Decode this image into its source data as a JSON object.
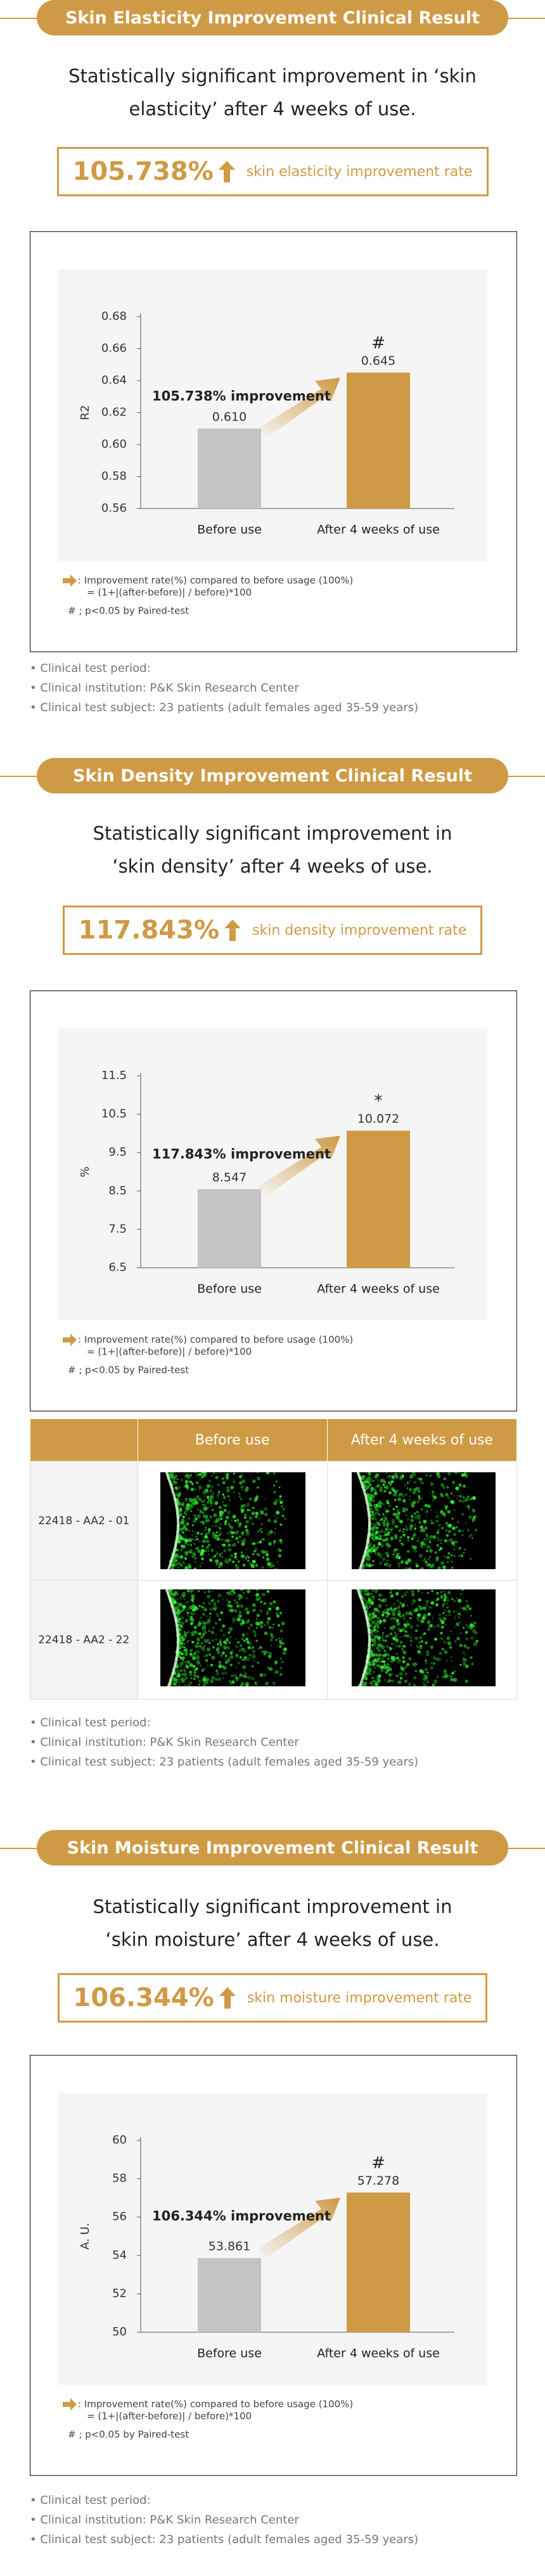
{
  "sections": [
    {
      "title": "Skin Elasticity Improvement Clinical Result",
      "subtitle": [
        "Statistically significant improvement in ‘skin",
        "elasticity’ after 4 weeks of use."
      ],
      "rate": "105.738%",
      "rate_label": "skin elasticity improvement rate",
      "chart_data": {
        "type": "bar",
        "categories": [
          "Before use",
          "After 4 weeks of use"
        ],
        "values": [
          0.61,
          0.645
        ],
        "value_labels": [
          "0.610",
          "0.645"
        ],
        "colors": [
          "#c4c4c4",
          "#cf9a45"
        ],
        "ylabel": "R2",
        "ylim": [
          0.56,
          0.68
        ],
        "yticks": [
          0.56,
          0.58,
          {
            "value": 0.6,
            "label": "0.60"
          },
          0.62,
          0.64,
          0.66,
          0.68
        ],
        "annotation": "105.738% improvement",
        "significance_marker": "#"
      },
      "notes": [
        ": Improvement rate(%) compared to before usage (100%)",
        "= (1+|(after-before)| / before)*100",
        "# ; p<0.05 by Paired-test"
      ],
      "clinical": [
        "Clinical test period:",
        "Clinical institution: P&K Skin Research Center",
        "Clinical test subject: 23 patients (adult females aged 35-59 years)"
      ]
    },
    {
      "title": "Skin Density Improvement Clinical Result",
      "subtitle": [
        "Statistically significant improvement in",
        "‘skin density’ after 4 weeks of use."
      ],
      "rate": "117.843%",
      "rate_label": "skin density improvement rate",
      "chart_data": {
        "type": "bar",
        "categories": [
          "Before use",
          "After 4 weeks of use"
        ],
        "values": [
          8.547,
          10.072
        ],
        "value_labels": [
          "8.547",
          "10.072"
        ],
        "colors": [
          "#c4c4c4",
          "#cf9a45"
        ],
        "ylabel": "%",
        "ylim": [
          6.5,
          11.5
        ],
        "yticks": [
          6.5,
          7.5,
          8.5,
          9.5,
          10.5,
          11.5
        ],
        "annotation": "117.843% improvement",
        "significance_marker": "*"
      },
      "notes": [
        ": Improvement rate(%) compared to before usage (100%)",
        "= (1+|(after-before)| / before)*100",
        "# ; p<0.05 by Paired-test"
      ],
      "table": {
        "header": [
          "Before use",
          "After 4 weeks of use"
        ],
        "rows": [
          "22418 - AA2 - 01",
          "22418 - AA2 - 22"
        ]
      },
      "clinical": [
        "Clinical test period:",
        "Clinical institution: P&K Skin Research Center",
        "Clinical test subject: 23 patients (adult females aged 35-59 years)"
      ]
    },
    {
      "title": "Skin Moisture Improvement Clinical Result",
      "subtitle": [
        "Statistically significant improvement in",
        "‘skin moisture’ after 4 weeks of use."
      ],
      "rate": "106.344%",
      "rate_label": "skin moisture improvement rate",
      "chart_data": {
        "type": "bar",
        "categories": [
          "Before use",
          "After 4 weeks of use"
        ],
        "values": [
          53.861,
          57.278
        ],
        "value_labels": [
          "53.861",
          "57.278"
        ],
        "colors": [
          "#c4c4c4",
          "#cf9a45"
        ],
        "ylabel": "A. U.",
        "ylim": [
          50,
          60
        ],
        "yticks": [
          50,
          52,
          54,
          56,
          58,
          60
        ],
        "annotation": "106.344% improvement",
        "significance_marker": "#"
      },
      "notes": [
        ": Improvement rate(%) compared to before usage (100%)",
        "= (1+|(after-before)| / before)*100",
        "# ; p<0.05 by Paired-test"
      ],
      "clinical": [
        "Clinical test period:",
        "Clinical institution: P&K Skin Research Center",
        "Clinical test subject: 23 patients (adult females aged 35-59 years)"
      ]
    }
  ]
}
